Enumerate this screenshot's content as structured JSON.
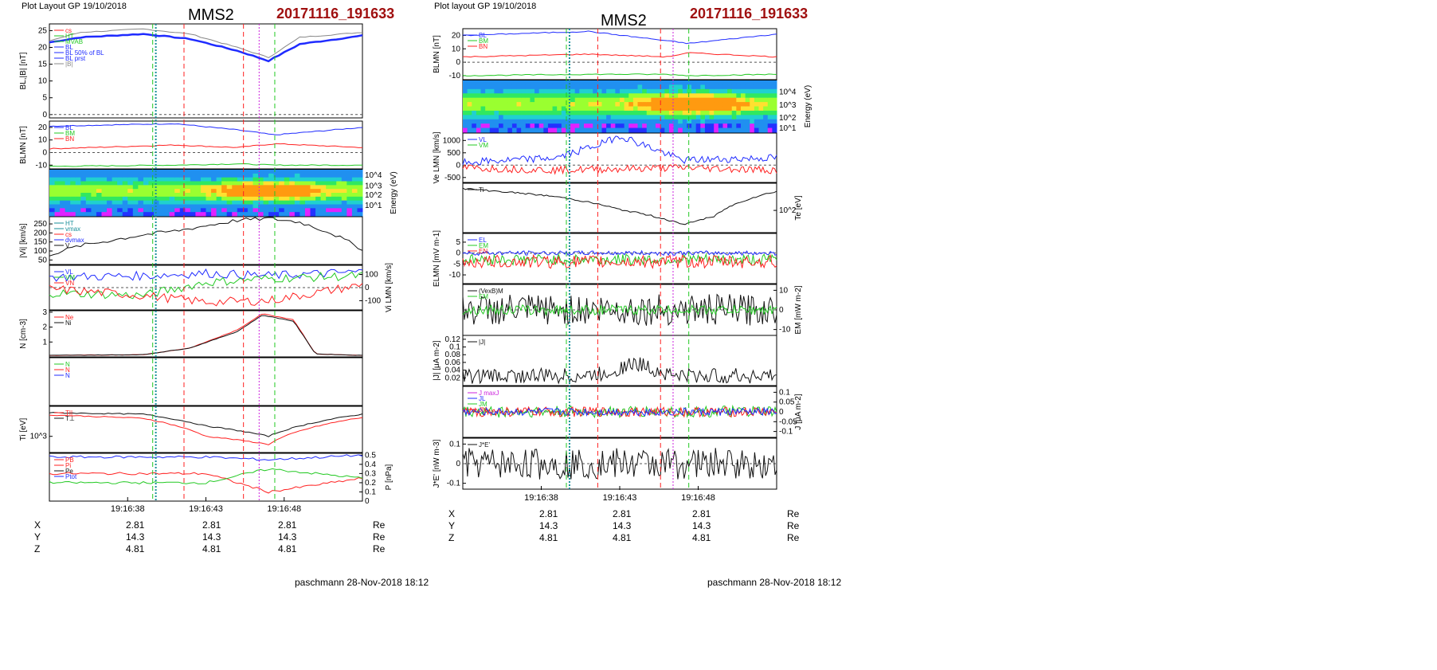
{
  "colors": {
    "stamp": "#a01010",
    "blue": "#1f2bff",
    "green": "#22c922",
    "red": "#ff2020",
    "black": "#111111",
    "magenta": "#cc22dd",
    "teal": "#1a8f9a",
    "gray": "#888888",
    "navy": "#1836d8"
  },
  "left": {
    "header": "Plot Layout GP 19/10/2018",
    "title": "MMS2",
    "stamp": "20171116_191633",
    "footer": "paschmann 28-Nov-2018 18:12",
    "time_ticks": [
      "19:16:38",
      "19:16:43",
      "19:16:48"
    ],
    "position_rows": [
      {
        "label": "X",
        "values": [
          "2.81",
          "2.81",
          "2.81"
        ],
        "unit": "Re"
      },
      {
        "label": "Y",
        "values": [
          "14.3",
          "14.3",
          "14.3"
        ],
        "unit": "Re"
      },
      {
        "label": "Z",
        "values": [
          "4.81",
          "4.81",
          "4.81"
        ],
        "unit": "Re"
      }
    ]
  },
  "right": {
    "header": "Plot layout GP 19/10/2018",
    "title": "MMS2",
    "stamp": "20171116_191633",
    "footer": "paschmann 28-Nov-2018 18:12",
    "time_ticks": [
      "19:16:38",
      "19:16:43",
      "19:16:48"
    ],
    "position_rows": [
      {
        "label": "X",
        "values": [
          "2.81",
          "2.81",
          "2.81"
        ],
        "unit": "Re"
      },
      {
        "label": "Y",
        "values": [
          "14.3",
          "14.3",
          "14.3"
        ],
        "unit": "Re"
      },
      {
        "label": "Z",
        "values": [
          "4.81",
          "4.81",
          "4.81"
        ],
        "unit": "Re"
      }
    ]
  },
  "chart_data": [
    {
      "type": "line",
      "panel": "left-1",
      "ylabel": "BL,|B| [nT]",
      "ylim": [
        -1,
        27
      ],
      "yticks": [
        0,
        5,
        10,
        15,
        20,
        25
      ],
      "legend": [
        "cs",
        "HT",
        "MVAB",
        "BL",
        "BL 50% of BL",
        "BL prst",
        "|B|"
      ],
      "series": [
        {
          "name": "BL",
          "color": "#1f2bff",
          "x": [
            0,
            0.1,
            0.3,
            0.45,
            0.6,
            0.7,
            0.8,
            1
          ],
          "y": [
            21.5,
            23,
            24,
            22.5,
            19,
            16,
            21,
            23.5
          ]
        },
        {
          "name": "|B|",
          "color": "#888888",
          "x": [
            0,
            0.1,
            0.3,
            0.45,
            0.6,
            0.7,
            0.8,
            1
          ],
          "y": [
            22,
            24.5,
            25.5,
            24,
            20,
            17,
            23,
            24.5
          ]
        }
      ]
    },
    {
      "type": "line",
      "panel": "left-2",
      "ylabel": "BLMN [nT]",
      "ylim": [
        -13,
        25
      ],
      "yticks": [
        -10,
        0,
        10,
        20
      ],
      "series_labels": [
        "BL",
        "BM",
        "BN"
      ],
      "series": [
        {
          "name": "BL",
          "color": "#1f2bff",
          "x": [
            0,
            0.4,
            0.6,
            0.72,
            1
          ],
          "y": [
            21,
            23,
            18,
            14,
            20
          ]
        },
        {
          "name": "BM",
          "color": "#ff2020",
          "x": [
            0,
            0.4,
            0.6,
            0.72,
            1
          ],
          "y": [
            3,
            6,
            4,
            7,
            4
          ]
        },
        {
          "name": "BN",
          "color": "#22c922",
          "x": [
            0,
            0.4,
            0.6,
            0.72,
            1
          ],
          "y": [
            -11,
            -10,
            -9,
            -10,
            -10
          ]
        }
      ]
    },
    {
      "type": "heatmap",
      "panel": "left-3",
      "ylabel": "Energy (eV)",
      "yticks": [
        "10^1",
        "10^2",
        "10^3",
        "10^4"
      ]
    },
    {
      "type": "line",
      "panel": "left-4",
      "ylabel": "|Vi| [km/s]",
      "ylim": [
        25,
        290
      ],
      "yticks": [
        50,
        100,
        150,
        200,
        250
      ],
      "legend": [
        "HT",
        "vmax",
        "cs",
        "dvmax",
        "V"
      ],
      "series": [
        {
          "name": "V",
          "color": "#111111",
          "x": [
            0,
            0.1,
            0.2,
            0.3,
            0.4,
            0.5,
            0.6,
            0.7,
            0.8,
            0.9,
            1
          ],
          "y": [
            80,
            130,
            160,
            190,
            210,
            240,
            270,
            280,
            260,
            200,
            110
          ]
        }
      ]
    },
    {
      "type": "line",
      "panel": "left-5",
      "ylabel": "Vi LMN [km/s]",
      "ylim": [
        -170,
        170
      ],
      "yticks": [
        -100,
        0,
        100
      ],
      "series_labels": [
        "VL",
        "VM",
        "VN"
      ],
      "series": [
        {
          "name": "VL",
          "color": "#1f2bff",
          "x": [
            0,
            0.3,
            0.5,
            0.7,
            1
          ],
          "y": [
            80,
            90,
            110,
            90,
            120
          ]
        },
        {
          "name": "VM",
          "color": "#22c922",
          "x": [
            0,
            0.3,
            0.5,
            0.7,
            1
          ],
          "y": [
            -40,
            -60,
            40,
            70,
            90
          ]
        },
        {
          "name": "VN",
          "color": "#ff2020",
          "x": [
            0,
            0.3,
            0.5,
            0.7,
            1
          ],
          "y": [
            -10,
            -60,
            -110,
            -100,
            20
          ]
        }
      ]
    },
    {
      "type": "line",
      "panel": "left-6",
      "ylabel": "N [cm-3]",
      "ylim": [
        0,
        3.1
      ],
      "yticks": [
        1,
        2,
        3
      ],
      "legend": [
        "Ne",
        "Ni"
      ],
      "series": [
        {
          "name": "Ne",
          "color": "#ff2020",
          "x": [
            0,
            0.3,
            0.45,
            0.6,
            0.68,
            0.78,
            0.85,
            1
          ],
          "y": [
            0.1,
            0.15,
            0.6,
            1.8,
            2.9,
            2.5,
            0.2,
            0.1
          ]
        },
        {
          "name": "Ni",
          "color": "#111111",
          "x": [
            0,
            0.3,
            0.45,
            0.6,
            0.68,
            0.78,
            0.85,
            1
          ],
          "y": [
            0.1,
            0.15,
            0.6,
            1.7,
            2.8,
            2.4,
            0.2,
            0.1
          ]
        }
      ]
    },
    {
      "type": "line",
      "panel": "left-7",
      "legend": [
        "N",
        "N",
        "N"
      ]
    },
    {
      "type": "line",
      "panel": "left-8",
      "ylabel": "Ti [eV]",
      "yticks": [
        "10^3"
      ],
      "series_labels": [
        "T||",
        "T⊥"
      ],
      "series": [
        {
          "name": "T||",
          "color": "#ff2020",
          "x": [
            0,
            0.3,
            0.5,
            0.7,
            1
          ],
          "y": [
            2600,
            2200,
            900,
            600,
            2300
          ]
        },
        {
          "name": "T⊥",
          "color": "#111111",
          "x": [
            0,
            0.3,
            0.5,
            0.7,
            1
          ],
          "y": [
            2900,
            2700,
            1500,
            900,
            2700
          ]
        }
      ]
    },
    {
      "type": "line",
      "panel": "left-9",
      "ylabel": "P [nPa]",
      "ylim": [
        0,
        0.52
      ],
      "yticks": [
        0,
        0.1,
        0.2,
        0.3,
        0.4,
        0.5
      ],
      "series_labels": [
        "PB",
        "Pi",
        "Pe",
        "Ptot"
      ],
      "series": [
        {
          "name": "PB",
          "color": "#ff2020",
          "x": [
            0,
            0.5,
            0.7,
            1
          ],
          "y": [
            0.3,
            0.3,
            0.1,
            0.25
          ]
        },
        {
          "name": "Ptot",
          "color": "#1f2bff",
          "x": [
            0,
            0.5,
            0.7,
            1
          ],
          "y": [
            0.48,
            0.48,
            0.45,
            0.5
          ]
        },
        {
          "name": "Pi",
          "color": "#22c922",
          "x": [
            0,
            0.5,
            0.7,
            1
          ],
          "y": [
            0.2,
            0.2,
            0.35,
            0.25
          ]
        }
      ]
    },
    {
      "type": "line",
      "panel": "right-1",
      "ylabel": "BLMN [nT]",
      "ylim": [
        -13,
        25
      ],
      "yticks": [
        -10,
        0,
        10,
        20
      ],
      "series_labels": [
        "BL",
        "BM",
        "BN"
      ],
      "series": [
        {
          "name": "BL",
          "color": "#1f2bff",
          "x": [
            0,
            0.4,
            0.65,
            0.72,
            1
          ],
          "y": [
            20,
            23,
            16,
            14,
            21
          ]
        },
        {
          "name": "BM",
          "color": "#ff2020",
          "x": [
            0,
            0.4,
            0.65,
            0.72,
            1
          ],
          "y": [
            4,
            6,
            4,
            7,
            4
          ]
        },
        {
          "name": "BN",
          "color": "#22c922",
          "x": [
            0,
            0.4,
            0.65,
            0.72,
            1
          ],
          "y": [
            -10,
            -9,
            -9,
            -10,
            -9
          ]
        }
      ]
    },
    {
      "type": "heatmap",
      "panel": "right-2",
      "ylabel": "Energy (eV)",
      "yticks": [
        "10^1",
        "10^2",
        "10^3",
        "10^4"
      ]
    },
    {
      "type": "line",
      "panel": "right-3",
      "ylabel": "Ve LMN [km/s]",
      "ylim": [
        -700,
        1300
      ],
      "yticks": [
        -500,
        0,
        500,
        1000
      ],
      "series_labels": [
        "VL",
        "VM"
      ],
      "series": [
        {
          "name": "VL",
          "color": "#1f2bff",
          "x": [
            0,
            0.3,
            0.45,
            0.5,
            0.7,
            1
          ],
          "y": [
            100,
            300,
            900,
            1200,
            200,
            300
          ]
        },
        {
          "name": "VM",
          "color": "#ff2020",
          "x": [
            0,
            0.3,
            0.5,
            0.7,
            1
          ],
          "y": [
            -100,
            -200,
            -150,
            -100,
            -200
          ]
        }
      ]
    },
    {
      "type": "line",
      "panel": "right-4",
      "ylabel": "Te [eV]",
      "yticks": [
        "10^2"
      ],
      "series_labels": [
        "Ti"
      ],
      "series": [
        {
          "name": "Ti",
          "color": "#111111",
          "x": [
            0,
            0.3,
            0.5,
            0.7,
            0.8,
            1
          ],
          "y": [
            380,
            250,
            130,
            60,
            90,
            330
          ]
        }
      ]
    },
    {
      "type": "line",
      "panel": "right-5",
      "ylabel": "ELMN [mV m-1]",
      "ylim": [
        -14,
        9
      ],
      "yticks": [
        -10,
        -5,
        0,
        5
      ],
      "series_labels": [
        "EL",
        "EM",
        "EN"
      ]
    },
    {
      "type": "line",
      "panel": "right-6",
      "ylabel": "EM [mW m-2]",
      "ylim": [
        -13,
        13
      ],
      "yticks": [
        -10,
        0,
        10
      ],
      "series_labels": [
        "(VexB)M",
        "EM"
      ]
    },
    {
      "type": "line",
      "panel": "right-7",
      "ylabel": "|J| [μA m-2]",
      "ylim": [
        0,
        0.13
      ],
      "yticks": [
        0.02,
        0.04,
        0.06,
        0.08,
        0.1,
        0.12
      ],
      "series_labels": [
        "|J|"
      ]
    },
    {
      "type": "line",
      "panel": "right-8",
      "ylabel": "J [μA m-2]",
      "ylim": [
        -0.13,
        0.13
      ],
      "yticks": [
        -0.1,
        -0.05,
        0,
        0.05,
        0.1
      ],
      "series_labels": [
        "J maxJ",
        "JL",
        "JM",
        "JN"
      ]
    },
    {
      "type": "line",
      "panel": "right-9",
      "ylabel": "J*E' [nW m-3]",
      "ylim": [
        -0.13,
        0.13
      ],
      "yticks": [
        -0.1,
        0,
        0.1
      ],
      "series_labels": [
        "J*E'"
      ]
    }
  ]
}
